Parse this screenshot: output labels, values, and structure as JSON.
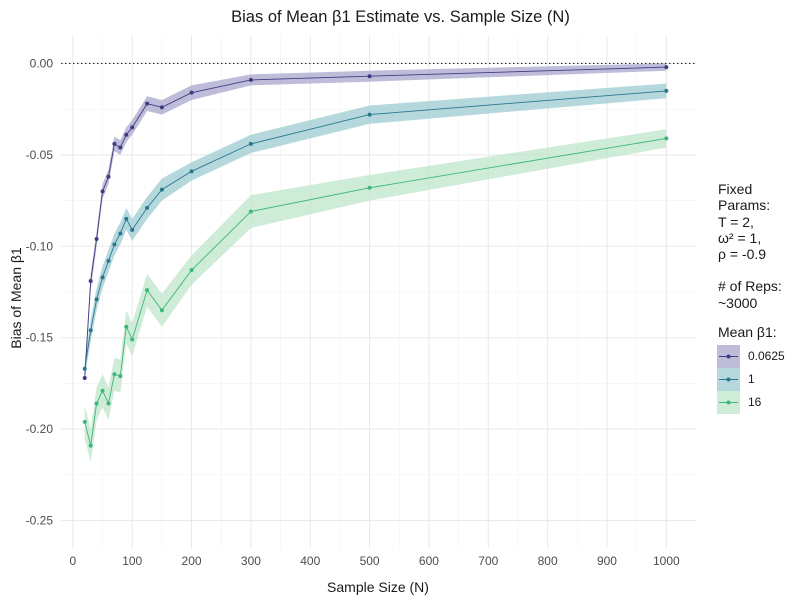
{
  "chart_data": {
    "type": "line",
    "title": "Bias of Mean β1 Estimate vs. Sample Size (N)",
    "xlabel": "Sample Size (N)",
    "ylabel": "Bias of Mean β1",
    "xlim": [
      -20,
      1050
    ],
    "ylim": [
      -0.265,
      0.015
    ],
    "xticks": [
      0,
      100,
      200,
      300,
      400,
      500,
      600,
      700,
      800,
      900,
      1000
    ],
    "xtick_labels": [
      "0",
      "100",
      "200",
      "300",
      "400",
      "500",
      "600",
      "700",
      "800",
      "900",
      "1000"
    ],
    "yticks": [
      0.0,
      -0.05,
      -0.1,
      -0.15,
      -0.2,
      -0.25
    ],
    "ytick_labels": [
      "0.00",
      "-0.05",
      "-0.10",
      "-0.15",
      "-0.20",
      "-0.25"
    ],
    "reference_line": 0,
    "grid": true,
    "legend_position": "right",
    "x": [
      20,
      30,
      40,
      50,
      60,
      70,
      80,
      90,
      100,
      125,
      150,
      200,
      300,
      500,
      1000
    ],
    "series": [
      {
        "name": "0.0625",
        "color": "#3f3d82",
        "band_color": "#a9a6cd",
        "values": [
          -0.172,
          -0.119,
          -0.096,
          -0.07,
          -0.062,
          -0.044,
          -0.046,
          -0.039,
          -0.035,
          -0.022,
          -0.024,
          -0.016,
          -0.009,
          -0.007,
          -0.002
        ],
        "lower": [
          -0.177,
          -0.124,
          -0.1,
          -0.074,
          -0.066,
          -0.048,
          -0.05,
          -0.043,
          -0.039,
          -0.026,
          -0.028,
          -0.02,
          -0.012,
          -0.01,
          -0.004
        ],
        "upper": [
          -0.168,
          -0.115,
          -0.092,
          -0.066,
          -0.058,
          -0.04,
          -0.042,
          -0.035,
          -0.031,
          -0.018,
          -0.02,
          -0.012,
          -0.006,
          -0.004,
          0.0
        ]
      },
      {
        "name": "1",
        "color": "#2a788e",
        "band_color": "#9ccbd2",
        "values": [
          -0.167,
          -0.146,
          -0.129,
          -0.117,
          -0.108,
          -0.099,
          -0.093,
          -0.085,
          -0.091,
          -0.079,
          -0.069,
          -0.059,
          -0.044,
          -0.028,
          -0.015
        ],
        "lower": [
          -0.172,
          -0.152,
          -0.135,
          -0.123,
          -0.114,
          -0.105,
          -0.099,
          -0.091,
          -0.097,
          -0.085,
          -0.075,
          -0.064,
          -0.049,
          -0.033,
          -0.019
        ],
        "upper": [
          -0.162,
          -0.14,
          -0.123,
          -0.111,
          -0.102,
          -0.093,
          -0.087,
          -0.079,
          -0.085,
          -0.073,
          -0.063,
          -0.054,
          -0.039,
          -0.023,
          -0.011
        ]
      },
      {
        "name": "16",
        "color": "#3cb878",
        "band_color": "#bde5cb",
        "values": [
          -0.196,
          -0.209,
          -0.186,
          -0.179,
          -0.186,
          -0.17,
          -0.171,
          -0.144,
          -0.151,
          -0.124,
          -0.135,
          -0.113,
          -0.081,
          -0.068,
          -0.041
        ],
        "lower": [
          -0.205,
          -0.218,
          -0.195,
          -0.188,
          -0.195,
          -0.179,
          -0.18,
          -0.153,
          -0.16,
          -0.133,
          -0.144,
          -0.121,
          -0.09,
          -0.075,
          -0.046
        ],
        "upper": [
          -0.187,
          -0.2,
          -0.177,
          -0.17,
          -0.177,
          -0.161,
          -0.162,
          -0.135,
          -0.142,
          -0.115,
          -0.126,
          -0.105,
          -0.072,
          -0.061,
          -0.036
        ]
      }
    ]
  },
  "annotation": {
    "line1": "Fixed",
    "line2": "Params:",
    "line3": "T = 2,",
    "line4": "ω² = 1,",
    "line5": "ρ = -0.9",
    "line6": "# of Reps:",
    "line7": "~3000"
  },
  "legend": {
    "title": "Mean β1:",
    "items": [
      "0.0625",
      "1",
      "16"
    ]
  }
}
